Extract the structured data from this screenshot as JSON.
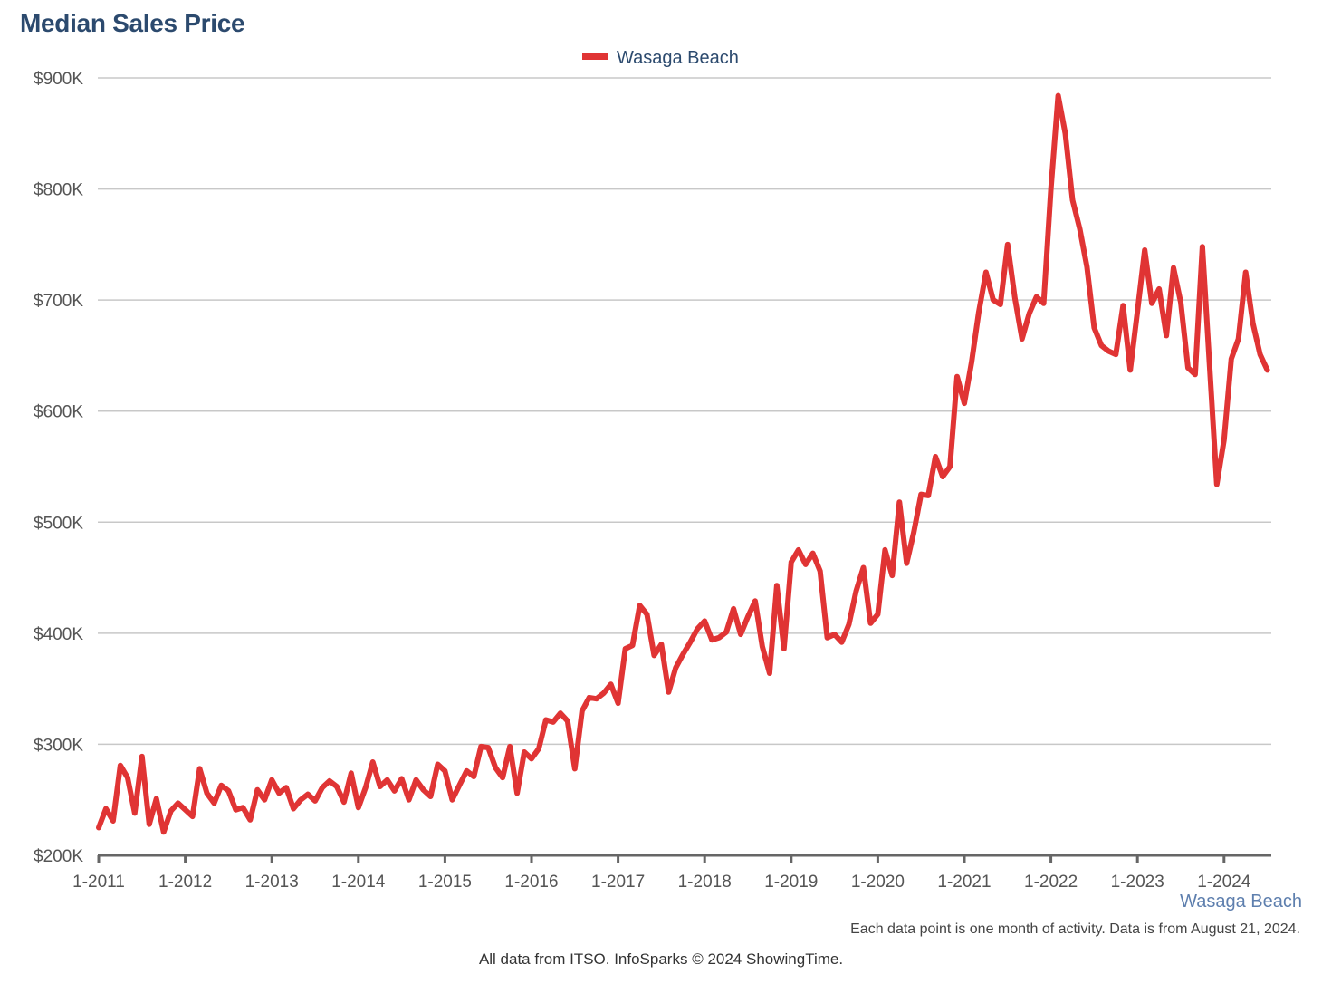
{
  "title": "Median Sales Price",
  "region_label": "Wasaga Beach",
  "note": "Each data point is one month of activity. Data is from August 21, 2024.",
  "source": "All data from ITSO. InfoSparks © 2024 ShowingTime.",
  "colors": {
    "series": "#e03434",
    "title": "#2c4a6e",
    "grid": "#c8c8c8",
    "axis": "#555555"
  },
  "chart_data": {
    "type": "line",
    "title": "Median Sales Price",
    "xlabel": "",
    "ylabel": "",
    "ylim": [
      200000,
      900000
    ],
    "yticks": [
      200000,
      300000,
      400000,
      500000,
      600000,
      700000,
      800000,
      900000
    ],
    "ytick_labels": [
      "$200K",
      "$300K",
      "$400K",
      "$500K",
      "$600K",
      "$700K",
      "$800K",
      "$900K"
    ],
    "xtick_labels": [
      "1-2011",
      "1-2012",
      "1-2013",
      "1-2014",
      "1-2015",
      "1-2016",
      "1-2017",
      "1-2018",
      "1-2019",
      "1-2020",
      "1-2021",
      "1-2022",
      "1-2023",
      "1-2024"
    ],
    "x_start": "2011-01",
    "x_end": "2024-07",
    "grid": true,
    "legend_position": "top-center",
    "series": [
      {
        "name": "Wasaga Beach",
        "color": "#e03434",
        "values": [
          225000,
          242000,
          231000,
          281000,
          270000,
          238000,
          289000,
          228000,
          251000,
          221000,
          240000,
          247000,
          241000,
          235000,
          278000,
          256000,
          247000,
          263000,
          258000,
          241000,
          243000,
          232000,
          259000,
          250000,
          268000,
          256000,
          261000,
          242000,
          250000,
          255000,
          249000,
          261000,
          267000,
          262000,
          248000,
          274000,
          243000,
          261000,
          284000,
          262000,
          268000,
          258000,
          269000,
          250000,
          268000,
          259000,
          253000,
          282000,
          276000,
          250000,
          263000,
          276000,
          271000,
          298000,
          297000,
          279000,
          270000,
          298000,
          256000,
          293000,
          287000,
          296000,
          322000,
          320000,
          328000,
          321000,
          278000,
          330000,
          342000,
          341000,
          346000,
          354000,
          337000,
          386000,
          389000,
          425000,
          417000,
          380000,
          390000,
          347000,
          369000,
          381000,
          392000,
          404000,
          411000,
          394000,
          396000,
          401000,
          422000,
          399000,
          415000,
          429000,
          388000,
          364000,
          443000,
          386000,
          464000,
          475000,
          462000,
          472000,
          456000,
          396000,
          399000,
          392000,
          408000,
          438000,
          459000,
          409000,
          417000,
          475000,
          452000,
          518000,
          463000,
          491000,
          525000,
          524000,
          559000,
          541000,
          550000,
          631000,
          607000,
          644000,
          689000,
          725000,
          700000,
          696000,
          750000,
          702000,
          665000,
          688000,
          703000,
          697000,
          800000,
          884000,
          850000,
          790000,
          764000,
          730000,
          675000,
          659000,
          654000,
          651000,
          695000,
          637000,
          690000,
          745000,
          697000,
          710000,
          668000,
          729000,
          698000,
          639000,
          633000,
          748000,
          640000,
          534000,
          574000,
          647000,
          665000,
          725000,
          679000,
          651000,
          637000
        ]
      }
    ]
  }
}
